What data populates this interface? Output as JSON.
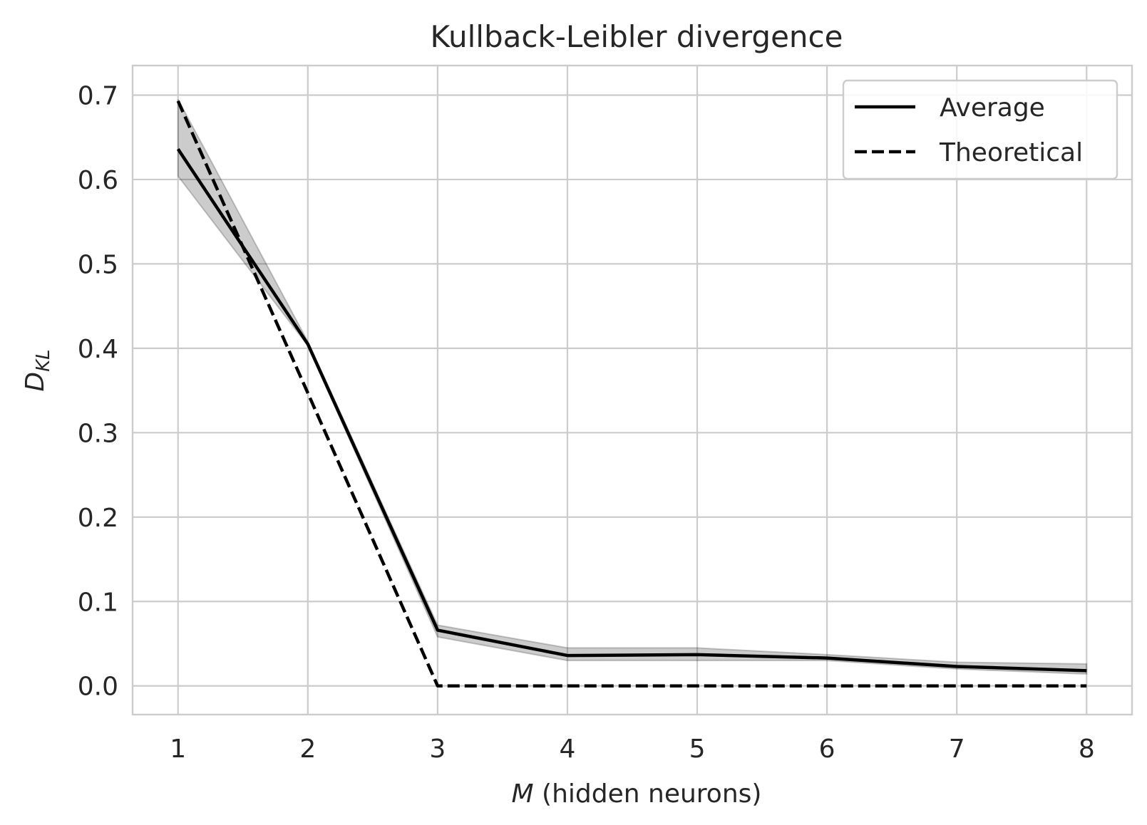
{
  "chart_data": {
    "type": "line",
    "title": "Kullback-Leibler divergence",
    "xlabel_var": "M",
    "xlabel_rest": " (hidden neurons)",
    "ylabel_main": "D",
    "ylabel_sub": "KL",
    "x": [
      1,
      2,
      3,
      4,
      5,
      6,
      7,
      8
    ],
    "xlim": [
      0.65,
      8.35
    ],
    "ylim": [
      -0.034,
      0.735
    ],
    "xticks": [
      "1",
      "2",
      "3",
      "4",
      "5",
      "6",
      "7",
      "8"
    ],
    "yticks": [
      "0.0",
      "0.1",
      "0.2",
      "0.3",
      "0.4",
      "0.5",
      "0.6",
      "0.7"
    ],
    "grid": true,
    "legend_position": "top-right",
    "series": [
      {
        "name": "Average",
        "style": "solid",
        "color": "#000000",
        "values": [
          0.636,
          0.405,
          0.066,
          0.036,
          0.037,
          0.033,
          0.023,
          0.018
        ],
        "band_lower": [
          0.604,
          0.403,
          0.058,
          0.03,
          0.03,
          0.03,
          0.02,
          0.014
        ],
        "band_upper": [
          0.695,
          0.408,
          0.072,
          0.045,
          0.045,
          0.037,
          0.028,
          0.026
        ]
      },
      {
        "name": "Theoretical",
        "style": "dashed",
        "color": "#000000",
        "values": [
          0.693,
          0.347,
          0.0,
          0.0,
          0.0,
          0.0,
          0.0,
          0.0
        ]
      }
    ]
  }
}
